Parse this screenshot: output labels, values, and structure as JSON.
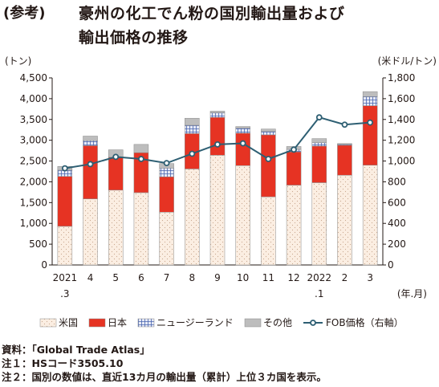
{
  "header": {
    "prefix": "(参考)",
    "title_line1": "豪州の化工でん粉の国別輸出量および",
    "title_line2": "輸出価格の推移"
  },
  "notes": {
    "source": "資料：「Global Trade Atlas」",
    "note1": "注１：HSコード3505.10",
    "note2": "注２：国別の数値は、直近13カ月の輸出量（累計）上位３カ国を表示。"
  },
  "colors": {
    "usa": "#fbeee2",
    "japan": "#e63323",
    "nz": "#dfe2f2",
    "other": "#bdbdbd",
    "fob": "#2e5f73"
  },
  "chart_data": {
    "type": "bar",
    "stacked": true,
    "categories": [
      "2021",
      "4",
      "5",
      "6",
      "7",
      "8",
      "9",
      "10",
      "11",
      "12",
      "2022",
      "2",
      "3"
    ],
    "category_sublabels": [
      ".3",
      "",
      "",
      "",
      "",
      "",
      "",
      "",
      "",
      "",
      ".1",
      "",
      ""
    ],
    "ylabel_left": "(トン)",
    "ylabel_right": "(米ドル/トン)",
    "xlabel": "(年.月)",
    "ylim_left": [
      0,
      4500
    ],
    "ylim_right": [
      0,
      1800
    ],
    "yticks_left": [
      "0",
      "500",
      "1,000",
      "1,500",
      "2,000",
      "2,500",
      "3,000",
      "3,500",
      "4,000",
      "4,500"
    ],
    "yticks_right": [
      "0",
      "200",
      "400",
      "600",
      "800",
      "1,000",
      "1,200",
      "1,400",
      "1,600",
      "1,800"
    ],
    "series": [
      {
        "name": "米国",
        "values": [
          930,
          1590,
          1800,
          1740,
          1270,
          2310,
          2640,
          2390,
          1640,
          1920,
          1980,
          2160,
          2400
        ]
      },
      {
        "name": "日本",
        "values": [
          1200,
          1280,
          790,
          960,
          850,
          850,
          910,
          780,
          1490,
          800,
          880,
          720,
          1430
        ]
      },
      {
        "name": "ニュージーランド",
        "values": [
          150,
          120,
          0,
          0,
          210,
          200,
          110,
          120,
          80,
          60,
          80,
          20,
          220
        ]
      },
      {
        "name": "その他",
        "values": [
          90,
          110,
          180,
          200,
          110,
          170,
          40,
          40,
          60,
          70,
          100,
          20,
          120
        ]
      },
      {
        "name": "FOB価格（右軸）",
        "axis": "right",
        "type": "line",
        "values": [
          930,
          970,
          1040,
          1020,
          980,
          1070,
          1160,
          1170,
          1020,
          1110,
          1420,
          1350,
          1370
        ]
      }
    ],
    "legend_position": "bottom",
    "grid": false
  }
}
